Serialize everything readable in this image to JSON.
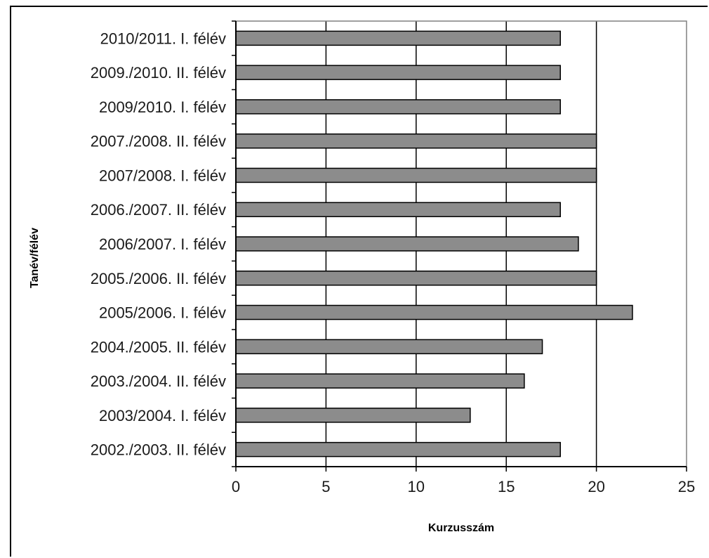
{
  "chart_data": {
    "type": "bar",
    "orientation": "horizontal",
    "categories": [
      "2010/2011. I. félév",
      "2009./2010. II. félév",
      "2009/2010. I. félév",
      "2007./2008. II. félév",
      "2007/2008. I. félév",
      "2006./2007. II. félév",
      "2006/2007. I. félév",
      "2005./2006. II. félév",
      "2005/2006. I. félév",
      "2004./2005. II. félév",
      "2003./2004. II. félév",
      "2003/2004. I. félév",
      "2002./2003. II. félév"
    ],
    "values": [
      18,
      18,
      18,
      20,
      20,
      18,
      19,
      20,
      22,
      17,
      16,
      13,
      18
    ],
    "xlabel": "Kurzusszám",
    "ylabel": "Tanév/félév",
    "xlim": [
      0,
      25
    ],
    "xticks": [
      0,
      5,
      10,
      15,
      20,
      25
    ],
    "grid": "vertical",
    "legend": "none",
    "colors": {
      "bar_fill": "#8c8c8c",
      "bar_stroke": "#000000",
      "gridline": "#000000",
      "plot_border": "#808080"
    }
  }
}
